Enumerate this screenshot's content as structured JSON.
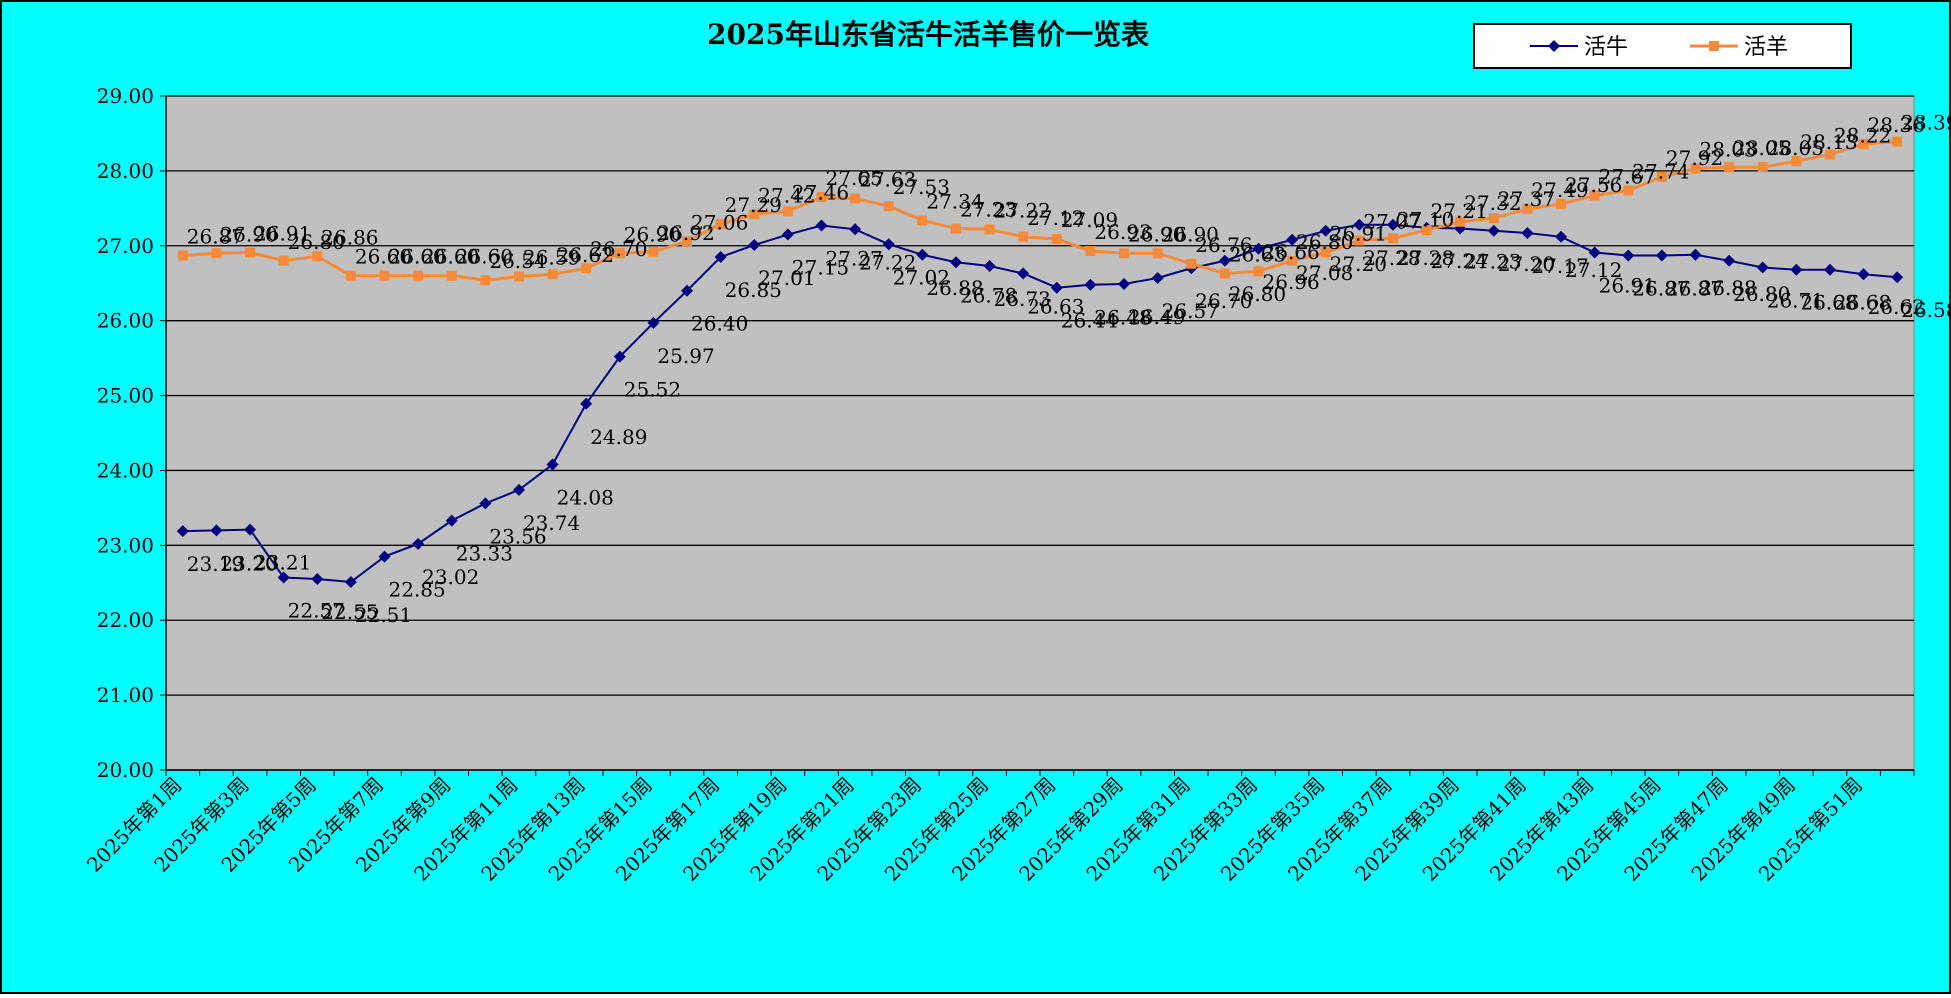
{
  "colors": {
    "background": "#00FFFF",
    "plot_area": "#C0C0C0",
    "cattle": "#000080",
    "sheep": "#F58B3A",
    "grid": "#000000"
  },
  "chart_data": {
    "type": "line",
    "title": "2025年山东省活牛活羊售价一览表",
    "xlabel": "",
    "ylabel": "",
    "ylim": [
      20,
      29
    ],
    "yticks": [
      "20.00",
      "21.00",
      "22.00",
      "23.00",
      "24.00",
      "25.00",
      "26.00",
      "27.00",
      "28.00",
      "29.00"
    ],
    "grid": "horizontal",
    "legend_position": "top-right",
    "categories": [
      "2025年第1周",
      "2025年第2周",
      "2025年第3周",
      "2025年第4周",
      "2025年第5周",
      "2025年第6周",
      "2025年第7周",
      "2025年第8周",
      "2025年第9周",
      "2025年第10周",
      "2025年第11周",
      "2025年第12周",
      "2025年第13周",
      "2025年第14周",
      "2025年第15周",
      "2025年第16周",
      "2025年第17周",
      "2025年第18周",
      "2025年第19周",
      "2025年第20周",
      "2025年第21周",
      "2025年第22周",
      "2025年第23周",
      "2025年第24周",
      "2025年第25周",
      "2025年第26周",
      "2025年第27周",
      "2025年第28周",
      "2025年第29周",
      "2025年第30周",
      "2025年第31周",
      "2025年第32周",
      "2025年第33周",
      "2025年第34周",
      "2025年第35周",
      "2025年第36周",
      "2025年第37周",
      "2025年第38周",
      "2025年第39周",
      "2025年第40周",
      "2025年第41周",
      "2025年第42周",
      "2025年第43周",
      "2025年第44周",
      "2025年第45周",
      "2025年第46周",
      "2025年第47周",
      "2025年第48周",
      "2025年第49周",
      "2025年第50周",
      "2025年第51周",
      "2025年第52周"
    ],
    "tick_labels": [
      "2025年第1周",
      "2025年第3周",
      "2025年第5周",
      "2025年第7周",
      "2025年第9周",
      "2025年第11周",
      "2025年第13周",
      "2025年第15周",
      "2025年第17周",
      "2025年第19周",
      "2025年第21周",
      "2025年第23周",
      "2025年第25周",
      "2025年第27周",
      "2025年第29周",
      "2025年第31周",
      "2025年第33周",
      "2025年第35周",
      "2025年第37周",
      "2025年第39周",
      "2025年第41周",
      "2025年第43周",
      "2025年第45周",
      "2025年第47周",
      "2025年第49周",
      "2025年第51周"
    ],
    "series": [
      {
        "name": "活牛",
        "marker": "diamond",
        "values": [
          23.19,
          23.2,
          23.21,
          22.57,
          22.55,
          22.51,
          22.85,
          23.02,
          23.33,
          23.56,
          23.74,
          24.08,
          24.89,
          25.52,
          25.97,
          26.4,
          26.85,
          27.01,
          27.15,
          27.27,
          27.22,
          27.02,
          26.88,
          26.78,
          26.73,
          26.63,
          26.44,
          26.48,
          26.49,
          26.57,
          26.7,
          26.8,
          26.96,
          27.08,
          27.2,
          27.28,
          27.28,
          27.24,
          27.23,
          27.2,
          27.17,
          27.12,
          26.91,
          26.87,
          26.87,
          26.88,
          26.8,
          26.71,
          26.68,
          26.68,
          26.62,
          26.58
        ]
      },
      {
        "name": "活羊",
        "marker": "square",
        "values": [
          26.87,
          26.9,
          26.91,
          26.8,
          26.86,
          26.6,
          26.6,
          26.6,
          26.6,
          26.54,
          26.59,
          26.62,
          26.7,
          26.9,
          26.92,
          27.06,
          27.29,
          27.42,
          27.46,
          27.65,
          27.63,
          27.53,
          27.34,
          27.23,
          27.22,
          27.12,
          27.09,
          26.93,
          26.9,
          26.9,
          26.76,
          26.63,
          26.66,
          26.8,
          26.91,
          27.07,
          27.1,
          27.21,
          27.32,
          27.37,
          27.49,
          27.56,
          27.67,
          27.74,
          27.92,
          28.03,
          28.05,
          28.05,
          28.13,
          28.22,
          28.36,
          28.39
        ]
      }
    ]
  }
}
